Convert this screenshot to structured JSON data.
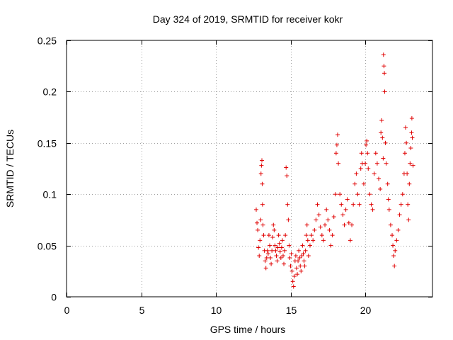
{
  "chart_data": {
    "type": "scatter",
    "title": "Day 324 of 2019, SRMTID for receiver kokr",
    "xlabel": "GPS time / hours",
    "ylabel": "SRMTID / TECUs",
    "xlim": [
      0,
      24.5
    ],
    "ylim": [
      0,
      0.25
    ],
    "xticks": [
      0,
      5,
      10,
      15,
      20
    ],
    "yticks": [
      0,
      0.05,
      0.1,
      0.15,
      0.2,
      0.25
    ],
    "xtick_labels": [
      "0",
      "5",
      "10",
      "15",
      "20"
    ],
    "ytick_labels": [
      "0",
      "0.05",
      "0.1",
      "0.15",
      "0.2",
      "0.25"
    ],
    "grid": true,
    "marker": "+",
    "color": "#e00000",
    "series": [
      {
        "name": "SRMTID",
        "points": [
          [
            12.7,
            0.085
          ],
          [
            12.75,
            0.072
          ],
          [
            12.8,
            0.065
          ],
          [
            12.85,
            0.048
          ],
          [
            12.9,
            0.04
          ],
          [
            12.95,
            0.055
          ],
          [
            13.0,
            0.075
          ],
          [
            13.02,
            0.12
          ],
          [
            13.05,
            0.128
          ],
          [
            13.08,
            0.133
          ],
          [
            13.1,
            0.11
          ],
          [
            13.12,
            0.09
          ],
          [
            13.15,
            0.07
          ],
          [
            13.2,
            0.06
          ],
          [
            13.25,
            0.045
          ],
          [
            13.3,
            0.035
          ],
          [
            13.35,
            0.028
          ],
          [
            13.4,
            0.038
          ],
          [
            13.45,
            0.045
          ],
          [
            13.5,
            0.042
          ],
          [
            13.55,
            0.06
          ],
          [
            13.6,
            0.05
          ],
          [
            13.65,
            0.038
          ],
          [
            13.7,
            0.032
          ],
          [
            13.75,
            0.045
          ],
          [
            13.8,
            0.058
          ],
          [
            13.85,
            0.07
          ],
          [
            13.9,
            0.065
          ],
          [
            13.95,
            0.05
          ],
          [
            14.0,
            0.045
          ],
          [
            14.05,
            0.04
          ],
          [
            14.1,
            0.035
          ],
          [
            14.15,
            0.048
          ],
          [
            14.2,
            0.06
          ],
          [
            14.25,
            0.052
          ],
          [
            14.3,
            0.044
          ],
          [
            14.35,
            0.038
          ],
          [
            14.4,
            0.048
          ],
          [
            14.45,
            0.055
          ],
          [
            14.5,
            0.04
          ],
          [
            14.55,
            0.032
          ],
          [
            14.6,
            0.045
          ],
          [
            14.65,
            0.06
          ],
          [
            14.7,
            0.126
          ],
          [
            14.75,
            0.118
          ],
          [
            14.8,
            0.09
          ],
          [
            14.85,
            0.075
          ],
          [
            14.9,
            0.05
          ],
          [
            14.95,
            0.038
          ],
          [
            15.0,
            0.03
          ],
          [
            15.05,
            0.042
          ],
          [
            15.1,
            0.025
          ],
          [
            15.15,
            0.015
          ],
          [
            15.2,
            0.01
          ],
          [
            15.25,
            0.02
          ],
          [
            15.3,
            0.035
          ],
          [
            15.35,
            0.04
          ],
          [
            15.4,
            0.028
          ],
          [
            15.45,
            0.022
          ],
          [
            15.5,
            0.035
          ],
          [
            15.55,
            0.045
          ],
          [
            15.6,
            0.038
          ],
          [
            15.65,
            0.03
          ],
          [
            15.7,
            0.025
          ],
          [
            15.75,
            0.04
          ],
          [
            15.8,
            0.05
          ],
          [
            15.85,
            0.042
          ],
          [
            15.9,
            0.035
          ],
          [
            15.95,
            0.03
          ],
          [
            16.0,
            0.045
          ],
          [
            16.05,
            0.06
          ],
          [
            16.1,
            0.07
          ],
          [
            16.15,
            0.055
          ],
          [
            16.2,
            0.04
          ],
          [
            16.3,
            0.05
          ],
          [
            16.4,
            0.06
          ],
          [
            16.5,
            0.055
          ],
          [
            16.6,
            0.065
          ],
          [
            16.7,
            0.075
          ],
          [
            16.8,
            0.09
          ],
          [
            16.9,
            0.08
          ],
          [
            17.0,
            0.068
          ],
          [
            17.1,
            0.06
          ],
          [
            17.2,
            0.055
          ],
          [
            17.3,
            0.07
          ],
          [
            17.4,
            0.085
          ],
          [
            17.5,
            0.075
          ],
          [
            17.6,
            0.065
          ],
          [
            17.7,
            0.05
          ],
          [
            17.8,
            0.06
          ],
          [
            17.9,
            0.078
          ],
          [
            18.0,
            0.1
          ],
          [
            18.05,
            0.14
          ],
          [
            18.1,
            0.148
          ],
          [
            18.15,
            0.158
          ],
          [
            18.2,
            0.13
          ],
          [
            18.3,
            0.1
          ],
          [
            18.4,
            0.09
          ],
          [
            18.5,
            0.08
          ],
          [
            18.6,
            0.07
          ],
          [
            18.7,
            0.085
          ],
          [
            18.8,
            0.095
          ],
          [
            18.9,
            0.072
          ],
          [
            19.0,
            0.055
          ],
          [
            19.1,
            0.07
          ],
          [
            19.2,
            0.09
          ],
          [
            19.3,
            0.11
          ],
          [
            19.4,
            0.12
          ],
          [
            19.5,
            0.1
          ],
          [
            19.6,
            0.09
          ],
          [
            19.7,
            0.125
          ],
          [
            19.75,
            0.14
          ],
          [
            19.8,
            0.13
          ],
          [
            19.9,
            0.11
          ],
          [
            20.0,
            0.13
          ],
          [
            20.05,
            0.148
          ],
          [
            20.1,
            0.152
          ],
          [
            20.15,
            0.14
          ],
          [
            20.2,
            0.125
          ],
          [
            20.3,
            0.1
          ],
          [
            20.4,
            0.09
          ],
          [
            20.5,
            0.085
          ],
          [
            20.6,
            0.12
          ],
          [
            20.7,
            0.14
          ],
          [
            20.8,
            0.13
          ],
          [
            20.9,
            0.115
          ],
          [
            21.0,
            0.105
          ],
          [
            21.05,
            0.16
          ],
          [
            21.1,
            0.172
          ],
          [
            21.15,
            0.155
          ],
          [
            21.2,
            0.135
          ],
          [
            21.22,
            0.236
          ],
          [
            21.25,
            0.225
          ],
          [
            21.28,
            0.218
          ],
          [
            21.3,
            0.2
          ],
          [
            21.35,
            0.15
          ],
          [
            21.4,
            0.13
          ],
          [
            21.5,
            0.11
          ],
          [
            21.55,
            0.095
          ],
          [
            21.6,
            0.085
          ],
          [
            21.7,
            0.07
          ],
          [
            21.8,
            0.06
          ],
          [
            21.85,
            0.05
          ],
          [
            21.9,
            0.04
          ],
          [
            21.95,
            0.03
          ],
          [
            22.0,
            0.045
          ],
          [
            22.1,
            0.055
          ],
          [
            22.2,
            0.065
          ],
          [
            22.3,
            0.08
          ],
          [
            22.4,
            0.09
          ],
          [
            22.5,
            0.1
          ],
          [
            22.6,
            0.12
          ],
          [
            22.65,
            0.14
          ],
          [
            22.7,
            0.165
          ],
          [
            22.75,
            0.15
          ],
          [
            22.8,
            0.12
          ],
          [
            22.85,
            0.09
          ],
          [
            22.9,
            0.075
          ],
          [
            22.95,
            0.11
          ],
          [
            23.0,
            0.13
          ],
          [
            23.05,
            0.145
          ],
          [
            23.1,
            0.16
          ],
          [
            23.12,
            0.174
          ],
          [
            23.15,
            0.155
          ],
          [
            23.2,
            0.128
          ]
        ]
      }
    ]
  }
}
